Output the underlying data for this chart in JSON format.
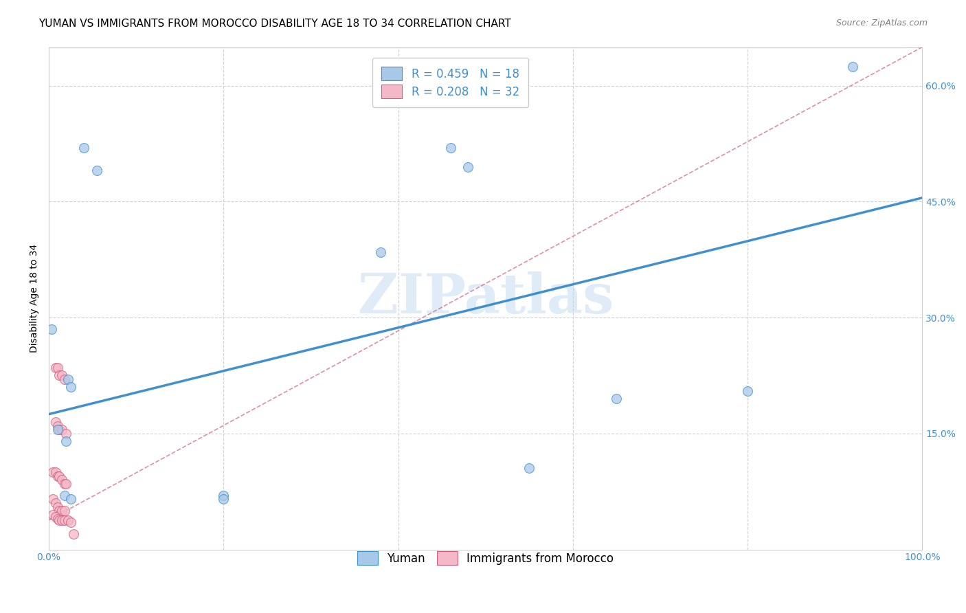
{
  "title": "YUMAN VS IMMIGRANTS FROM MOROCCO DISABILITY AGE 18 TO 34 CORRELATION CHART",
  "source": "Source: ZipAtlas.com",
  "xlabel": "",
  "ylabel": "Disability Age 18 to 34",
  "watermark": "ZIPatlas",
  "xmin": 0.0,
  "xmax": 1.0,
  "ymin": 0.0,
  "ymax": 0.65,
  "xticks": [
    0.0,
    0.2,
    0.4,
    0.6,
    0.8,
    1.0
  ],
  "xticklabels": [
    "0.0%",
    "",
    "",
    "",
    "",
    "100.0%"
  ],
  "yticks": [
    0.15,
    0.3,
    0.45,
    0.6
  ],
  "yticklabels": [
    "15.0%",
    "30.0%",
    "45.0%",
    "60.0%"
  ],
  "legend1_label": "R = 0.459   N = 18",
  "legend2_label": "R = 0.208   N = 32",
  "legend_bottom_label1": "Yuman",
  "legend_bottom_label2": "Immigrants from Morocco",
  "blue_color": "#a8c8e8",
  "pink_color": "#f4b8c8",
  "blue_line_color": "#4090d0",
  "pink_line_color": "#d06080",
  "blue_scatter_edge": "#4090d0",
  "pink_scatter_edge": "#d06080",
  "blue_scatter": [
    [
      0.003,
      0.285
    ],
    [
      0.04,
      0.52
    ],
    [
      0.055,
      0.49
    ],
    [
      0.01,
      0.155
    ],
    [
      0.022,
      0.22
    ],
    [
      0.025,
      0.21
    ],
    [
      0.018,
      0.07
    ],
    [
      0.025,
      0.065
    ],
    [
      0.2,
      0.07
    ],
    [
      0.38,
      0.385
    ],
    [
      0.46,
      0.52
    ],
    [
      0.48,
      0.495
    ],
    [
      0.55,
      0.105
    ],
    [
      0.65,
      0.195
    ],
    [
      0.8,
      0.205
    ],
    [
      0.92,
      0.625
    ],
    [
      0.2,
      0.065
    ],
    [
      0.02,
      0.14
    ]
  ],
  "pink_scatter": [
    [
      0.008,
      0.235
    ],
    [
      0.01,
      0.235
    ],
    [
      0.012,
      0.225
    ],
    [
      0.015,
      0.225
    ],
    [
      0.018,
      0.22
    ],
    [
      0.008,
      0.165
    ],
    [
      0.01,
      0.16
    ],
    [
      0.012,
      0.155
    ],
    [
      0.015,
      0.155
    ],
    [
      0.02,
      0.15
    ],
    [
      0.005,
      0.1
    ],
    [
      0.008,
      0.1
    ],
    [
      0.01,
      0.095
    ],
    [
      0.012,
      0.095
    ],
    [
      0.015,
      0.09
    ],
    [
      0.018,
      0.085
    ],
    [
      0.02,
      0.085
    ],
    [
      0.005,
      0.065
    ],
    [
      0.008,
      0.06
    ],
    [
      0.01,
      0.055
    ],
    [
      0.012,
      0.05
    ],
    [
      0.015,
      0.05
    ],
    [
      0.018,
      0.05
    ],
    [
      0.005,
      0.045
    ],
    [
      0.008,
      0.042
    ],
    [
      0.01,
      0.04
    ],
    [
      0.012,
      0.038
    ],
    [
      0.015,
      0.038
    ],
    [
      0.018,
      0.038
    ],
    [
      0.022,
      0.038
    ],
    [
      0.025,
      0.035
    ],
    [
      0.028,
      0.02
    ]
  ],
  "blue_trend_x": [
    0.0,
    1.0
  ],
  "blue_trend_y": [
    0.175,
    0.455
  ],
  "pink_trend_x": [
    0.0,
    1.0
  ],
  "pink_trend_y": [
    0.038,
    0.65
  ],
  "grid_color": "#d0d0d0",
  "background_color": "#ffffff",
  "title_fontsize": 11,
  "axis_label_fontsize": 10,
  "tick_fontsize": 10,
  "scatter_size": 100,
  "legend_fontsize": 12
}
